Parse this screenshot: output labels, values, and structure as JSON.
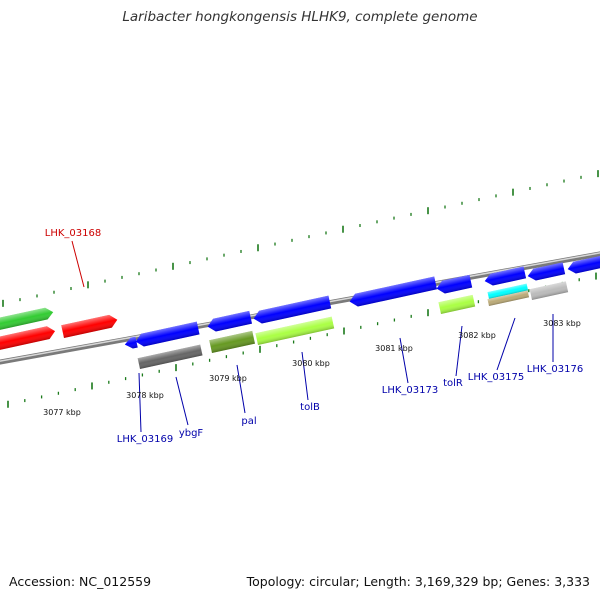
{
  "title": "Laribacter hongkongensis HLHK9, complete genome",
  "footer": {
    "accession": "Accession: NC_012559",
    "stats": "Topology: circular; Length: 3,169,329 bp; Genes: 3,333"
  },
  "colors": {
    "backbone": "#808080",
    "tick": "#1a7a1a",
    "gene_label": "#0000aa",
    "highlight_label": "#cc0000",
    "cds_blue": "#0000ff",
    "cds_red": "#ff0000",
    "cds_green": "#33cc33",
    "feature_lime": "#aaff44",
    "feature_olive": "#669922",
    "feature_gray": "#666666",
    "feature_lightgray": "#bbbbbb",
    "feature_cyan": "#00ffff",
    "feature_tan": "#bbaa77"
  },
  "scale_labels": [
    "3077 kbp",
    "3078 kbp",
    "3079 kbp",
    "3080 kbp",
    "3081 kbp",
    "3082 kbp",
    "3083 kbp"
  ],
  "gene_labels": [
    {
      "text": "LHK_03168",
      "color": "highlight"
    },
    {
      "text": "LHK_03169",
      "color": "gene"
    },
    {
      "text": "ybgF",
      "color": "gene"
    },
    {
      "text": "pal",
      "color": "gene"
    },
    {
      "text": "tolB",
      "color": "gene"
    },
    {
      "text": "LHK_03173",
      "color": "gene"
    },
    {
      "text": "tolR",
      "color": "gene"
    },
    {
      "text": "LHK_03175",
      "color": "gene"
    },
    {
      "text": "LHK_03176",
      "color": "gene"
    }
  ]
}
